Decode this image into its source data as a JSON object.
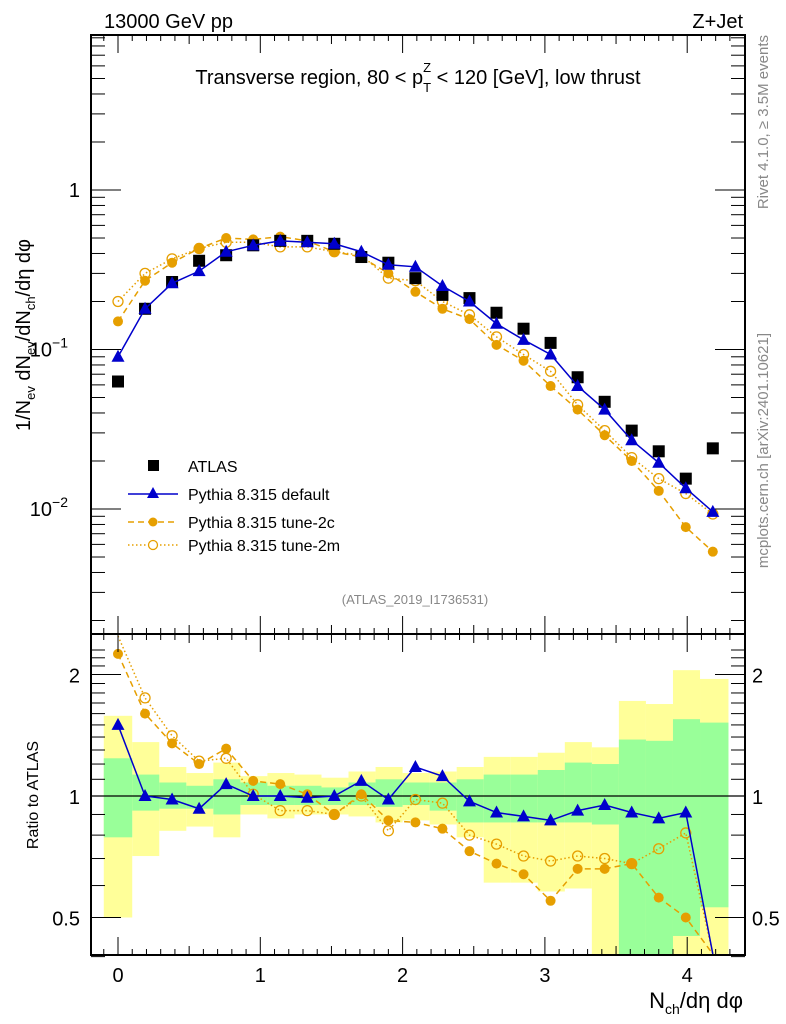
{
  "header": {
    "left": "13000 GeV pp",
    "right": "Z+Jet"
  },
  "side_text": {
    "rivet": "Rivet 4.1.0, ≥ 3.5M events",
    "mcplots": "mcplots.cern.ch [arXiv:2401.10621]"
  },
  "analysis_id": "(ATLAS_2019_I1736531)",
  "chart_data": [
    {
      "type": "scatter",
      "panel": "main",
      "title": "Transverse region, 80 < p_T^Z < 120 [GeV], low thrust",
      "ylabel": "1/N_ev dN_ev/dN_ch/dη dφ",
      "xlabel": "N_ch/dη dφ",
      "yscale": "log",
      "ylim": [
        0.0018,
        5.6
      ],
      "xlim": [
        -0.19,
        4.41
      ],
      "y_ticks": [
        "10^-2",
        "10^-1",
        "1"
      ],
      "x_ticks": [
        "0",
        "1",
        "2",
        "3",
        "4"
      ],
      "legend_position": "lower-left",
      "x": [
        0,
        0.19,
        0.38,
        0.57,
        0.76,
        0.95,
        1.14,
        1.33,
        1.52,
        1.71,
        1.9,
        2.09,
        2.28,
        2.47,
        2.66,
        2.85,
        3.04,
        3.23,
        3.42,
        3.61,
        3.8,
        3.99,
        4.18
      ],
      "series": [
        {
          "name": "ATLAS",
          "style": "black-square",
          "values": [
            0.063,
            0.18,
            0.265,
            0.36,
            0.39,
            0.45,
            0.48,
            0.48,
            0.46,
            0.38,
            0.35,
            0.28,
            0.22,
            0.21,
            0.17,
            0.135,
            0.11,
            0.067,
            0.047,
            0.031,
            0.023,
            0.0155,
            0.024
          ]
        },
        {
          "name": "Pythia 8.315 default",
          "style": "blue-triangle-solid",
          "values": [
            0.09,
            0.18,
            0.26,
            0.31,
            0.41,
            0.45,
            0.48,
            0.47,
            0.46,
            0.41,
            0.34,
            0.33,
            0.25,
            0.2,
            0.145,
            0.115,
            0.093,
            0.059,
            0.042,
            0.027,
            0.0195,
            0.0135,
            0.0096
          ]
        },
        {
          "name": "Pythia 8.315 tune-2c",
          "style": "orange-dot-dashed",
          "values": [
            0.15,
            0.27,
            0.35,
            0.43,
            0.5,
            0.49,
            0.51,
            0.48,
            0.41,
            0.38,
            0.3,
            0.23,
            0.18,
            0.155,
            0.107,
            0.085,
            0.059,
            0.042,
            0.029,
            0.02,
            0.013,
            0.0077,
            0.0054
          ]
        },
        {
          "name": "Pythia 8.315 tune-2m",
          "style": "orange-opencircle-dotted",
          "values": [
            0.2,
            0.3,
            0.37,
            0.43,
            0.47,
            0.47,
            0.44,
            0.44,
            0.41,
            0.39,
            0.28,
            0.27,
            0.2,
            0.165,
            0.12,
            0.093,
            0.073,
            0.045,
            0.031,
            0.021,
            0.0155,
            0.0125,
            0.0093
          ]
        }
      ]
    },
    {
      "type": "scatter",
      "panel": "ratio",
      "ylabel": "Ratio to ATLAS",
      "xlabel": "N_ch/dη dφ",
      "yscale": "log",
      "ylim": [
        0.4,
        2.35
      ],
      "y_ticks": [
        "0.5",
        "1",
        "2"
      ],
      "x_ticks": [
        "0",
        "1",
        "2",
        "3",
        "4"
      ],
      "reference_line": 1,
      "x": [
        0,
        0.19,
        0.38,
        0.57,
        0.76,
        0.95,
        1.14,
        1.33,
        1.52,
        1.71,
        1.9,
        2.09,
        2.28,
        2.47,
        2.66,
        2.85,
        3.04,
        3.23,
        3.42,
        3.61,
        3.8,
        3.99,
        4.18
      ],
      "bands": {
        "edges": [
          -0.1,
          0.1,
          0.29,
          0.48,
          0.67,
          0.86,
          1.05,
          1.24,
          1.43,
          1.62,
          1.81,
          2.0,
          2.19,
          2.38,
          2.57,
          2.76,
          2.95,
          3.14,
          3.33,
          3.52,
          3.71,
          3.9,
          4.09,
          4.29
        ],
        "green": {
          "lo": [
            0.79,
            0.92,
            0.93,
            0.93,
            0.9,
            0.95,
            0.95,
            0.95,
            0.95,
            0.95,
            0.94,
            0.95,
            0.92,
            0.86,
            0.86,
            0.86,
            0.86,
            0.86,
            0.85,
            0.32,
            0.32,
            0.45,
            0.53
          ],
          "hi": [
            1.24,
            1.13,
            1.08,
            1.06,
            1.1,
            1.08,
            1.06,
            1.06,
            1.05,
            1.08,
            1.1,
            1.08,
            1.08,
            1.1,
            1.13,
            1.13,
            1.16,
            1.21,
            1.2,
            1.38,
            1.37,
            1.55,
            1.52
          ]
        },
        "yellow": {
          "lo": [
            0.5,
            0.71,
            0.82,
            0.84,
            0.79,
            0.9,
            0.88,
            0.9,
            0.9,
            0.89,
            0.86,
            0.87,
            0.85,
            0.79,
            0.61,
            0.61,
            0.58,
            0.59,
            0.3,
            0.3,
            0.3,
            0.3,
            0.3
          ],
          "hi": [
            1.58,
            1.36,
            1.18,
            1.14,
            1.21,
            1.12,
            1.14,
            1.13,
            1.11,
            1.15,
            1.18,
            1.14,
            1.15,
            1.18,
            1.25,
            1.25,
            1.28,
            1.36,
            1.32,
            1.72,
            1.69,
            2.05,
            1.95
          ]
        }
      },
      "series": [
        {
          "name": "Pythia 8.315 default",
          "values": [
            1.5,
            1.0,
            0.98,
            0.93,
            1.07,
            1.0,
            1.0,
            0.99,
            1.0,
            1.09,
            0.98,
            1.18,
            1.12,
            0.97,
            0.91,
            0.89,
            0.87,
            0.92,
            0.95,
            0.91,
            0.88,
            0.91,
            0.37
          ]
        },
        {
          "name": "Pythia 8.315 tune-2c",
          "values": [
            2.25,
            1.6,
            1.35,
            1.2,
            1.31,
            1.09,
            1.07,
            1.01,
            0.9,
            1.01,
            0.87,
            0.86,
            0.83,
            0.73,
            0.68,
            0.64,
            0.55,
            0.66,
            0.66,
            0.68,
            0.56,
            0.5,
            0.3
          ]
        },
        {
          "name": "Pythia 8.315 tune-2m",
          "values": [
            3.2,
            1.75,
            1.41,
            1.22,
            1.24,
            1.01,
            0.92,
            0.92,
            0.9,
            1.0,
            0.82,
            0.98,
            0.96,
            0.8,
            0.76,
            0.71,
            0.69,
            0.71,
            0.7,
            0.68,
            0.74,
            0.81,
            0.3
          ]
        }
      ]
    }
  ]
}
